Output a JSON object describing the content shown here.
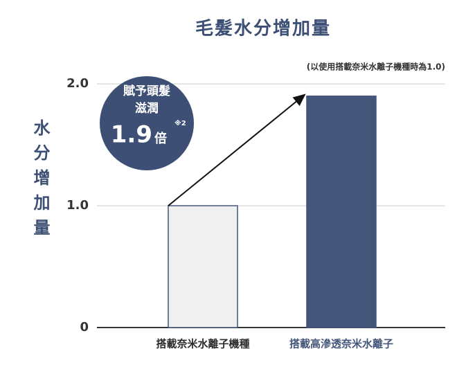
{
  "chart_data": {
    "type": "bar",
    "title": "毛髮水分增加量",
    "subtitle": "(以使用搭載奈米水離子機種時為1.0)",
    "ylabel": "水分增加量",
    "categories": [
      "搭載奈米水離子機種",
      "搭載高滲透奈米水離子"
    ],
    "values": [
      1.0,
      1.9
    ],
    "colors": [
      "#f0f0f0",
      "#44557a"
    ],
    "edgecolor": "#44557a",
    "ylim": [
      0,
      2.2
    ],
    "yticks": [
      0,
      {
        "value": 1,
        "label": "1.0"
      },
      {
        "value": 2,
        "label": "2.0"
      }
    ],
    "grid": true,
    "badge": {
      "lines": [
        "賦予頭髮",
        "滋潤"
      ],
      "value": "1.9",
      "unit": "倍",
      "note": "※2"
    }
  }
}
